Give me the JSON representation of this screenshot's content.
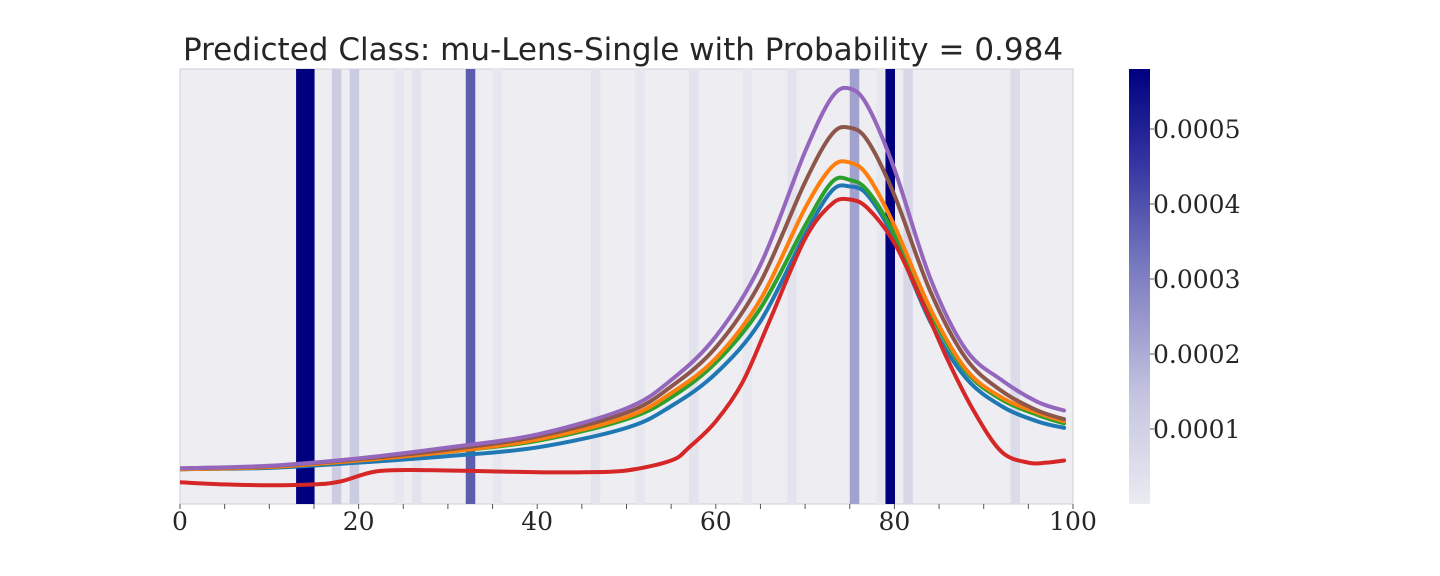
{
  "chart_data": {
    "type": "line",
    "title": "Predicted Class: mu-Lens-Single with Probability = 0.984",
    "xlabel": "",
    "ylabel": "",
    "xlim": [
      0,
      100
    ],
    "x_ticks": [
      0,
      20,
      40,
      60,
      80,
      100
    ],
    "grid": false,
    "legend": "none",
    "background_color": "#eeeef2",
    "series": [
      {
        "color": "#1f77b4",
        "x": [
          0,
          10,
          20,
          30,
          40,
          50,
          55,
          60,
          65,
          70,
          73,
          75,
          77,
          80,
          84,
          88,
          92,
          96,
          99
        ],
        "values": [
          0.08,
          0.083,
          0.095,
          0.11,
          0.13,
          0.175,
          0.225,
          0.3,
          0.42,
          0.62,
          0.72,
          0.73,
          0.71,
          0.61,
          0.42,
          0.29,
          0.225,
          0.19,
          0.175
        ]
      },
      {
        "color": "#2ca02c",
        "x": [
          0,
          10,
          20,
          30,
          40,
          50,
          55,
          60,
          65,
          70,
          73,
          75,
          77,
          80,
          84,
          88,
          92,
          96,
          99
        ],
        "values": [
          0.08,
          0.085,
          0.1,
          0.12,
          0.145,
          0.195,
          0.245,
          0.325,
          0.45,
          0.64,
          0.74,
          0.745,
          0.72,
          0.62,
          0.44,
          0.305,
          0.24,
          0.205,
          0.185
        ]
      },
      {
        "color": "#ff7f0e",
        "x": [
          0,
          10,
          20,
          30,
          40,
          50,
          55,
          60,
          65,
          70,
          73,
          75,
          77,
          80,
          84,
          88,
          92,
          96,
          99
        ],
        "values": [
          0.08,
          0.085,
          0.1,
          0.12,
          0.148,
          0.2,
          0.255,
          0.335,
          0.47,
          0.68,
          0.775,
          0.785,
          0.755,
          0.64,
          0.45,
          0.31,
          0.245,
          0.21,
          0.19
        ]
      },
      {
        "color": "#8c564b",
        "x": [
          0,
          10,
          20,
          30,
          40,
          50,
          55,
          60,
          65,
          70,
          73,
          75,
          77,
          80,
          84,
          88,
          92,
          96,
          99
        ],
        "values": [
          0.082,
          0.087,
          0.103,
          0.125,
          0.155,
          0.21,
          0.27,
          0.36,
          0.51,
          0.74,
          0.85,
          0.865,
          0.835,
          0.71,
          0.49,
          0.335,
          0.26,
          0.215,
          0.195
        ]
      },
      {
        "color": "#9467bd",
        "x": [
          0,
          10,
          20,
          30,
          40,
          50,
          55,
          60,
          65,
          70,
          73,
          75,
          77,
          80,
          84,
          88,
          92,
          96,
          99
        ],
        "values": [
          0.082,
          0.088,
          0.105,
          0.13,
          0.16,
          0.22,
          0.285,
          0.385,
          0.55,
          0.81,
          0.935,
          0.955,
          0.915,
          0.77,
          0.52,
          0.355,
          0.285,
          0.235,
          0.215
        ]
      },
      {
        "color": "#d62728",
        "x": [
          0,
          5,
          10,
          15,
          18,
          22,
          27,
          35,
          40,
          45,
          50,
          55,
          57,
          60,
          63,
          66,
          70,
          73,
          75,
          77,
          80,
          83,
          86,
          89,
          92,
          95,
          97,
          99
        ],
        "values": [
          0.05,
          0.045,
          0.043,
          0.045,
          0.052,
          0.075,
          0.078,
          0.075,
          0.073,
          0.073,
          0.077,
          0.1,
          0.13,
          0.19,
          0.28,
          0.42,
          0.61,
          0.69,
          0.7,
          0.68,
          0.6,
          0.47,
          0.33,
          0.21,
          0.12,
          0.095,
          0.095,
          0.1
        ]
      }
    ],
    "attribution_bands": [
      {
        "x": 13.5,
        "value": 0.00058
      },
      {
        "x": 14.5,
        "value": 0.00058
      },
      {
        "x": 17.5,
        "value": 8e-05
      },
      {
        "x": 19.5,
        "value": 8e-05
      },
      {
        "x": 24.5,
        "value": 1e-05
      },
      {
        "x": 26.5,
        "value": 2e-05
      },
      {
        "x": 32.5,
        "value": 0.00035
      },
      {
        "x": 35.5,
        "value": 1e-05
      },
      {
        "x": 46.5,
        "value": 2e-05
      },
      {
        "x": 51.5,
        "value": 1e-05
      },
      {
        "x": 57.5,
        "value": 2e-05
      },
      {
        "x": 63.5,
        "value": 1e-05
      },
      {
        "x": 68.5,
        "value": 2e-05
      },
      {
        "x": 75.5,
        "value": 0.00018
      },
      {
        "x": 78.5,
        "value": 1e-05
      },
      {
        "x": 79.5,
        "value": 0.00058
      },
      {
        "x": 81.5,
        "value": 5e-05
      },
      {
        "x": 93.5,
        "value": 4e-05
      }
    ],
    "colorbar": {
      "vmin": 0,
      "vmax": 0.00058,
      "ticks": [
        0.0001,
        0.0002,
        0.0003,
        0.0004,
        0.0005
      ],
      "tick_labels": [
        "0.0001",
        "0.0002",
        "0.0003",
        "0.0004",
        "0.0005"
      ],
      "color_low": "#ebebf2",
      "color_high": "#00007f"
    }
  }
}
